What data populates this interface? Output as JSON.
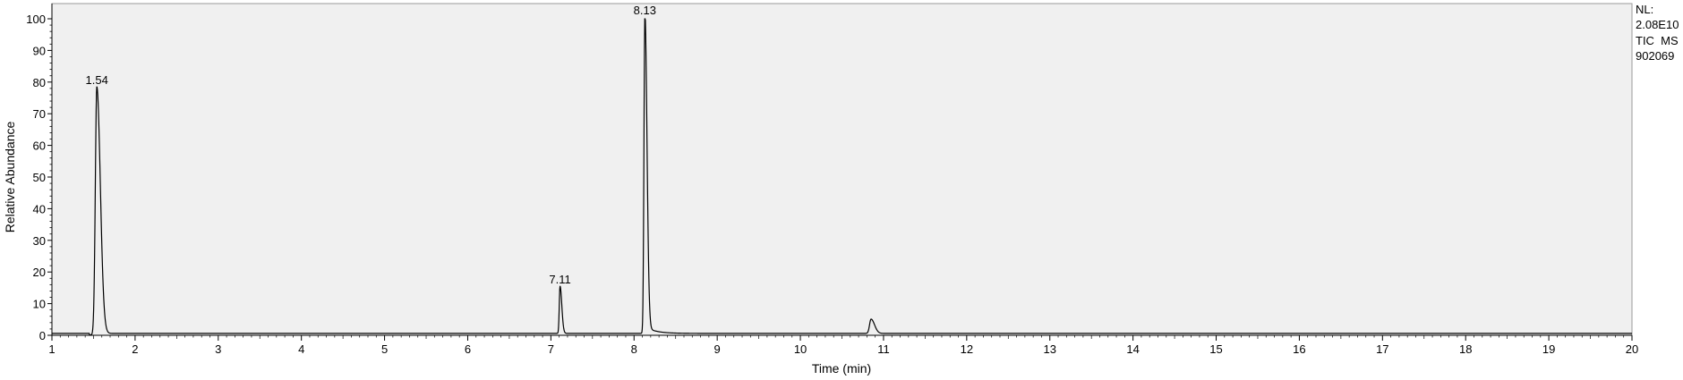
{
  "chart_data": {
    "type": "line",
    "xlabel": "Time (min)",
    "ylabel": "Relative Abundance",
    "xlim": [
      1,
      20
    ],
    "ylim": [
      0,
      100
    ],
    "x_ticks": [
      1,
      2,
      3,
      4,
      5,
      6,
      7,
      8,
      9,
      10,
      11,
      12,
      13,
      14,
      15,
      16,
      17,
      18,
      19,
      20
    ],
    "y_ticks": [
      0,
      10,
      20,
      30,
      40,
      50,
      60,
      70,
      80,
      90,
      100
    ],
    "grid": false,
    "background": "#f0f0f0",
    "line_color": "#000000",
    "peaks": [
      {
        "rt": 1.54,
        "label": "1.54",
        "height": 78,
        "width": 0.03
      },
      {
        "rt": 7.11,
        "label": "7.11",
        "height": 15,
        "width": 0.015
      },
      {
        "rt": 8.13,
        "label": "8.13",
        "height": 100,
        "width": 0.018
      },
      {
        "rt": 10.85,
        "label": "",
        "height": 4.5,
        "width": 0.03
      }
    ],
    "info": {
      "nl_label": "NL:",
      "nl_value": "2.08E10",
      "trace": "TIC  MS",
      "sample": "902069"
    }
  }
}
